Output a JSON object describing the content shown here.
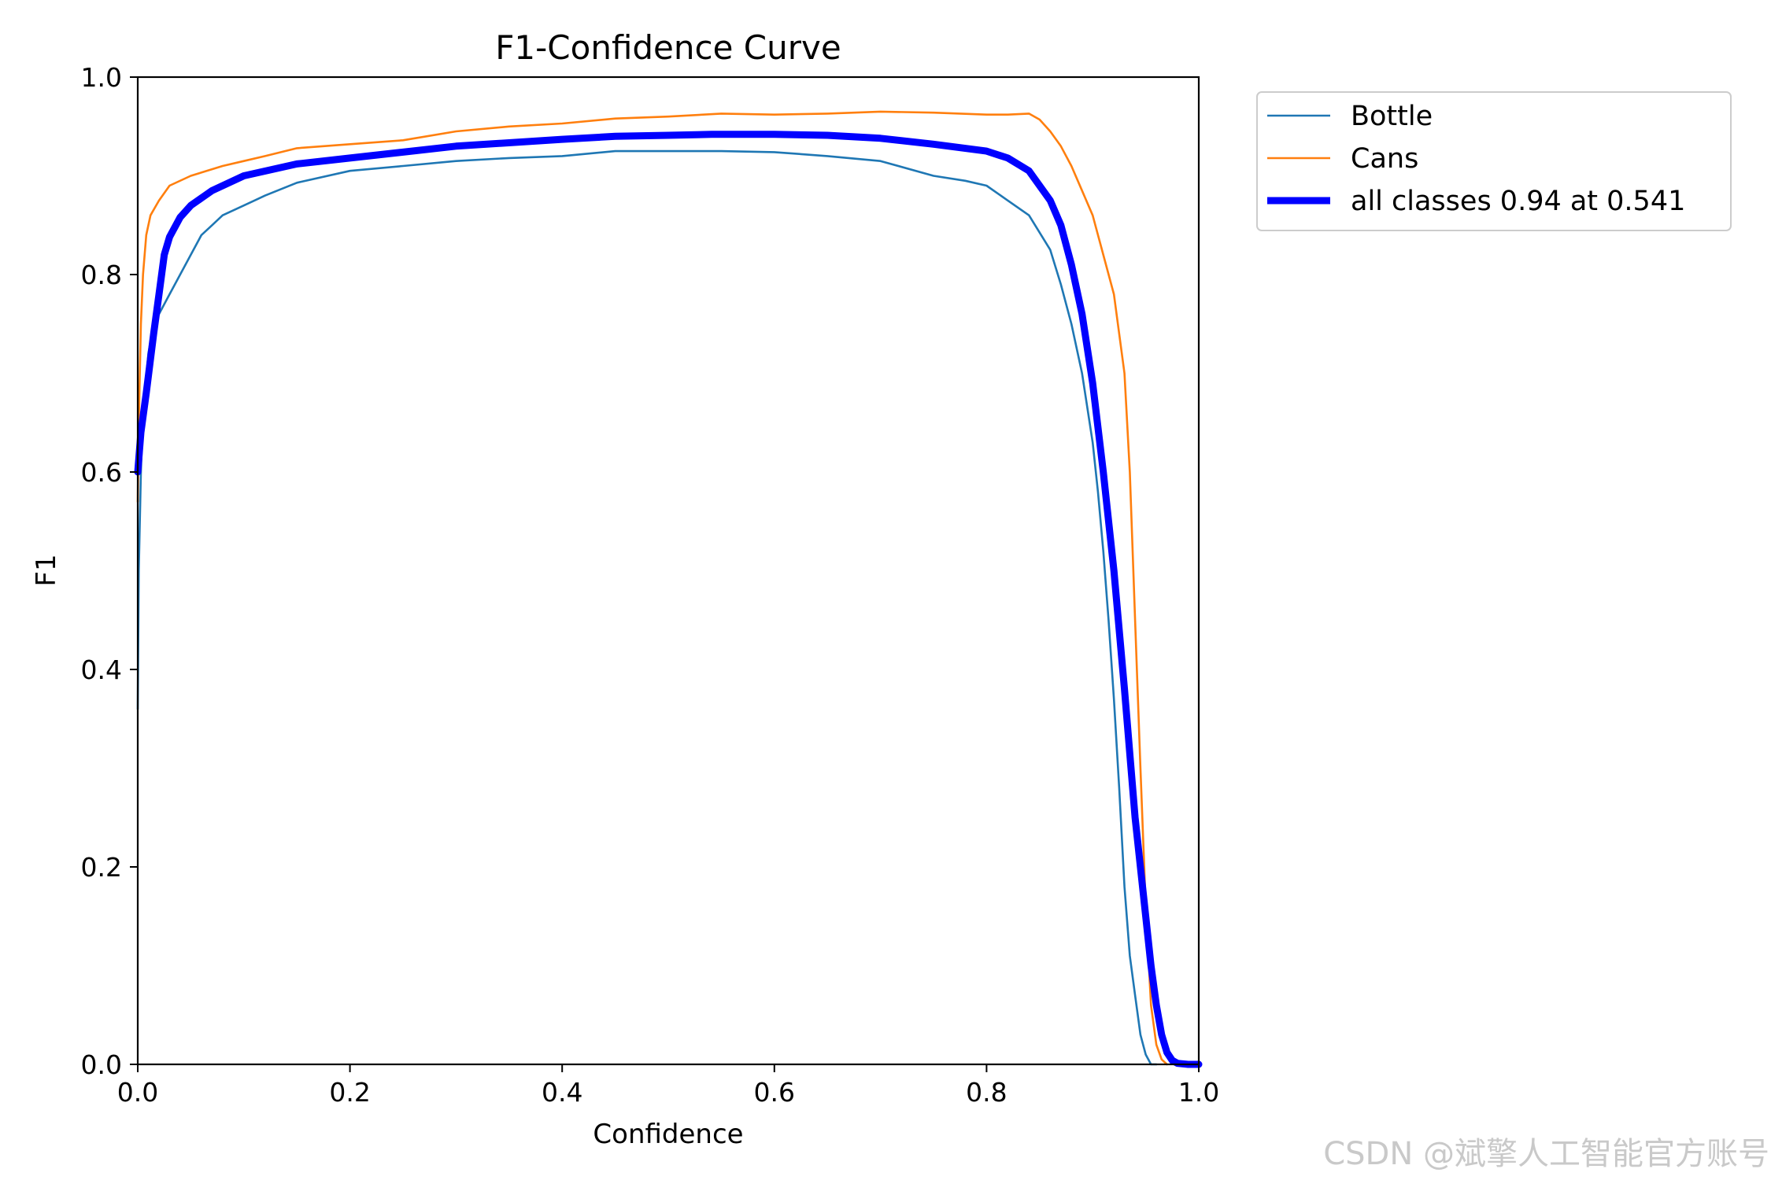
{
  "chart_data": {
    "type": "line",
    "title": "F1-Confidence Curve",
    "xlabel": "Confidence",
    "ylabel": "F1",
    "xlim": [
      0,
      1
    ],
    "ylim": [
      0,
      1
    ],
    "xticks": [
      "0.0",
      "0.2",
      "0.4",
      "0.6",
      "0.8",
      "1.0"
    ],
    "yticks": [
      "0.0",
      "0.2",
      "0.4",
      "0.6",
      "0.8",
      "1.0"
    ],
    "grid": false,
    "legend_position": "outside-top-right",
    "series": [
      {
        "name": "Bottle",
        "color": "#1f77b4",
        "x": [
          0.0,
          0.001,
          0.003,
          0.005,
          0.01,
          0.015,
          0.02,
          0.03,
          0.04,
          0.05,
          0.06,
          0.07,
          0.08,
          0.1,
          0.12,
          0.15,
          0.2,
          0.25,
          0.3,
          0.35,
          0.4,
          0.45,
          0.5,
          0.55,
          0.6,
          0.65,
          0.7,
          0.75,
          0.78,
          0.8,
          0.82,
          0.84,
          0.86,
          0.87,
          0.88,
          0.89,
          0.9,
          0.905,
          0.91,
          0.915,
          0.92,
          0.925,
          0.93,
          0.935,
          0.94,
          0.945,
          0.95,
          0.955,
          0.96
        ],
        "values": [
          0.36,
          0.5,
          0.6,
          0.66,
          0.72,
          0.75,
          0.76,
          0.78,
          0.8,
          0.82,
          0.84,
          0.85,
          0.86,
          0.87,
          0.88,
          0.893,
          0.905,
          0.91,
          0.915,
          0.918,
          0.92,
          0.925,
          0.925,
          0.925,
          0.924,
          0.92,
          0.915,
          0.9,
          0.895,
          0.89,
          0.875,
          0.86,
          0.825,
          0.79,
          0.75,
          0.7,
          0.63,
          0.58,
          0.52,
          0.45,
          0.37,
          0.28,
          0.18,
          0.11,
          0.07,
          0.03,
          0.01,
          0.0,
          0.0
        ]
      },
      {
        "name": "Cans",
        "color": "#ff7f0e",
        "x": [
          0.0,
          0.001,
          0.003,
          0.005,
          0.008,
          0.012,
          0.02,
          0.03,
          0.05,
          0.08,
          0.1,
          0.12,
          0.15,
          0.2,
          0.25,
          0.3,
          0.35,
          0.4,
          0.45,
          0.5,
          0.55,
          0.6,
          0.65,
          0.7,
          0.75,
          0.8,
          0.82,
          0.84,
          0.85,
          0.86,
          0.87,
          0.88,
          0.89,
          0.9,
          0.91,
          0.92,
          0.93,
          0.935,
          0.94,
          0.945,
          0.95,
          0.955,
          0.96,
          0.965,
          0.97
        ],
        "values": [
          0.57,
          0.65,
          0.75,
          0.8,
          0.84,
          0.86,
          0.875,
          0.89,
          0.9,
          0.91,
          0.915,
          0.92,
          0.928,
          0.932,
          0.936,
          0.945,
          0.95,
          0.953,
          0.958,
          0.96,
          0.963,
          0.962,
          0.963,
          0.965,
          0.964,
          0.962,
          0.962,
          0.963,
          0.957,
          0.945,
          0.93,
          0.91,
          0.885,
          0.86,
          0.82,
          0.78,
          0.7,
          0.6,
          0.45,
          0.3,
          0.16,
          0.06,
          0.02,
          0.005,
          0.0
        ]
      },
      {
        "name": "all classes 0.94 at 0.541",
        "color": "#0000ff",
        "x": [
          0.0,
          0.003,
          0.008,
          0.015,
          0.02,
          0.025,
          0.03,
          0.04,
          0.05,
          0.07,
          0.1,
          0.15,
          0.2,
          0.3,
          0.4,
          0.45,
          0.5,
          0.541,
          0.6,
          0.65,
          0.7,
          0.75,
          0.8,
          0.82,
          0.84,
          0.86,
          0.87,
          0.88,
          0.89,
          0.9,
          0.91,
          0.92,
          0.93,
          0.94,
          0.95,
          0.955,
          0.96,
          0.965,
          0.97,
          0.975,
          0.98,
          0.99,
          1.0
        ],
        "values": [
          0.6,
          0.64,
          0.68,
          0.74,
          0.78,
          0.82,
          0.838,
          0.858,
          0.87,
          0.885,
          0.9,
          0.912,
          0.918,
          0.93,
          0.937,
          0.94,
          0.941,
          0.942,
          0.942,
          0.941,
          0.938,
          0.932,
          0.925,
          0.918,
          0.905,
          0.875,
          0.85,
          0.81,
          0.76,
          0.69,
          0.6,
          0.5,
          0.38,
          0.25,
          0.15,
          0.1,
          0.06,
          0.03,
          0.012,
          0.004,
          0.001,
          0.0,
          0.0
        ]
      }
    ]
  },
  "watermark": "CSDN @斌擎人工智能官方账号"
}
